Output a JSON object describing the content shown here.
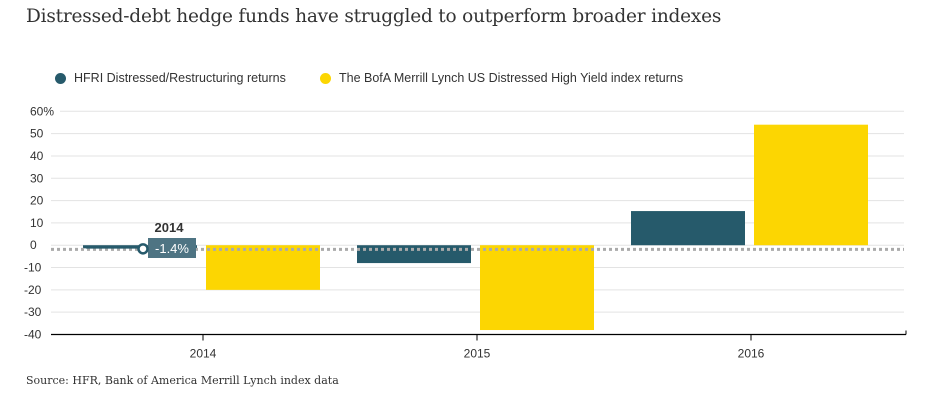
{
  "title": "Distressed-debt hedge funds have struggled to outperform broader indexes",
  "source": "Source: HFR, Bank of America Merrill Lynch index data",
  "legend": [
    {
      "label": "HFRI Distressed/Restructuring returns",
      "color": "#265a6b"
    },
    {
      "label": "The BofA Merrill Lynch US Distressed High Yield index returns",
      "color": "#fcd602"
    }
  ],
  "tooltip": {
    "year": "2014",
    "value": "-1.4%",
    "series": "HFRI Distressed/Restructuring returns",
    "reference_value": -1.4
  },
  "chart_data": {
    "type": "bar",
    "title": "Distressed-debt hedge funds have struggled to outperform broader indexes",
    "xlabel": "",
    "ylabel": "",
    "categories": [
      "2014",
      "2015",
      "2016"
    ],
    "series": [
      {
        "name": "HFRI Distressed/Restructuring returns",
        "color": "#265a6b",
        "values": [
          -1.4,
          -8,
          15.3
        ]
      },
      {
        "name": "The BofA Merrill Lynch US Distressed High Yield index returns",
        "color": "#fcd602",
        "values": [
          -20,
          -38,
          54
        ]
      }
    ],
    "ylim": [
      -40,
      60
    ],
    "yticks": [
      60,
      50,
      40,
      30,
      20,
      10,
      0,
      -10,
      -20,
      -30,
      -40
    ],
    "ytick_labels": [
      "60%",
      "50",
      "40",
      "30",
      "20",
      "10",
      "0",
      "-10",
      "-20",
      "-30",
      "-40"
    ],
    "grid": true,
    "legend_position": "top-left",
    "reference_line": {
      "value": -1.4,
      "style": "dotted",
      "color": "#aaaaaa"
    }
  }
}
